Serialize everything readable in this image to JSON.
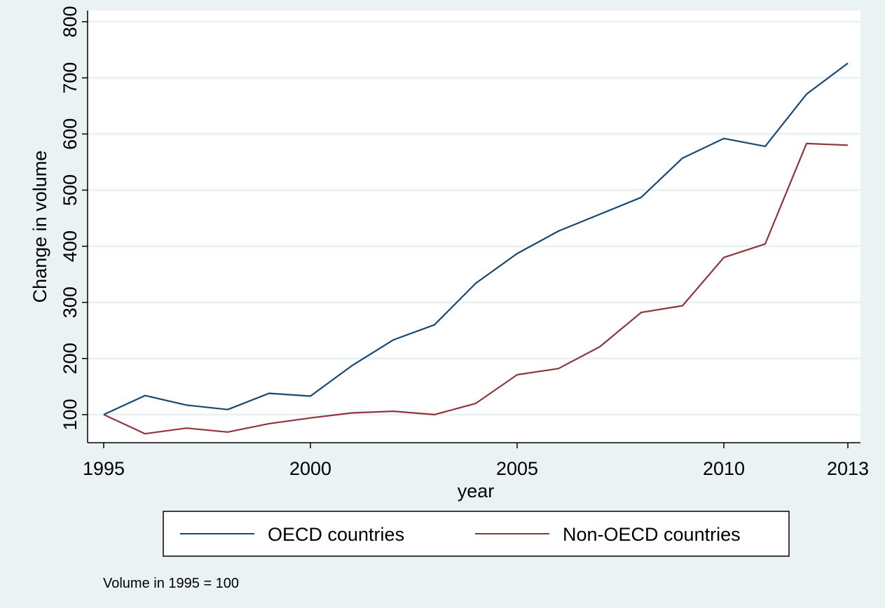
{
  "chart_data": {
    "type": "line",
    "xlabel": "year",
    "ylabel": "Change in volume",
    "x": [
      1995,
      1996,
      1997,
      1998,
      1999,
      2000,
      2001,
      2002,
      2003,
      2004,
      2005,
      2006,
      2007,
      2008,
      2009,
      2010,
      2011,
      2012,
      2013
    ],
    "series": [
      {
        "name": "OECD countries",
        "color": "#1a476f",
        "values": [
          100,
          134,
          117,
          109,
          138,
          133,
          187,
          233,
          260,
          334,
          387,
          427,
          457,
          487,
          557,
          592,
          578,
          671,
          726
        ]
      },
      {
        "name": "Non-OECD countries",
        "color": "#90353b",
        "values": [
          100,
          66,
          76,
          69,
          84,
          94,
          103,
          106,
          100,
          120,
          171,
          182,
          221,
          282,
          294,
          380,
          404,
          583,
          580
        ]
      }
    ],
    "xlim": [
      1995,
      2013
    ],
    "ylim": [
      50,
      820
    ],
    "xticks": [
      "1995",
      "2000",
      "2005",
      "2010",
      "2013"
    ],
    "yticks": [
      "100",
      "200",
      "300",
      "400",
      "500",
      "600",
      "700",
      "800"
    ],
    "grid": true,
    "legend_position": "bottom",
    "note": "Volume in 1995 = 100",
    "colors": {
      "background": "#eaf2f3",
      "plot_area": "#ffffff",
      "grid": "#eaf2f3",
      "axis": "#000000"
    }
  }
}
